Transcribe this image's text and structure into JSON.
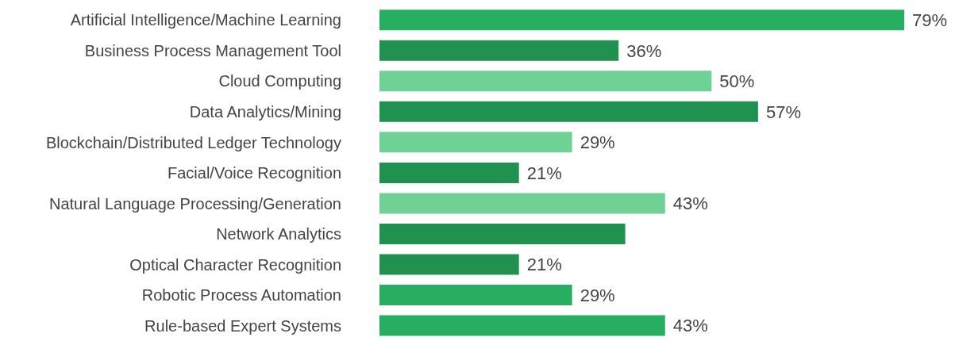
{
  "chart_data": {
    "type": "bar",
    "orientation": "horizontal",
    "categories": [
      "Artificial Intelligence/Machine Learning",
      "Business Process Management Tool",
      "Cloud Computing",
      "Data Analytics/Mining",
      "Blockchain/Distributed Ledger Technology",
      "Facial/Voice Recognition",
      "Natural Language Processing/Generation",
      "Network Analytics",
      "Optical Character Recognition",
      "Robotic Process Automation",
      "Rule-based Expert Systems"
    ],
    "values": [
      79,
      36,
      50,
      57,
      29,
      21,
      43,
      37,
      21,
      29,
      43
    ],
    "value_labels": [
      "79%",
      "36%",
      "50%",
      "57%",
      "29%",
      "21%",
      "43%",
      null,
      "21%",
      "29%",
      "43%"
    ],
    "colors": [
      "#27ae60",
      "#219150",
      "#70d196",
      "#219150",
      "#70d196",
      "#219150",
      "#70d196",
      "#219150",
      "#219150",
      "#27ae60",
      "#27ae60"
    ]
  }
}
